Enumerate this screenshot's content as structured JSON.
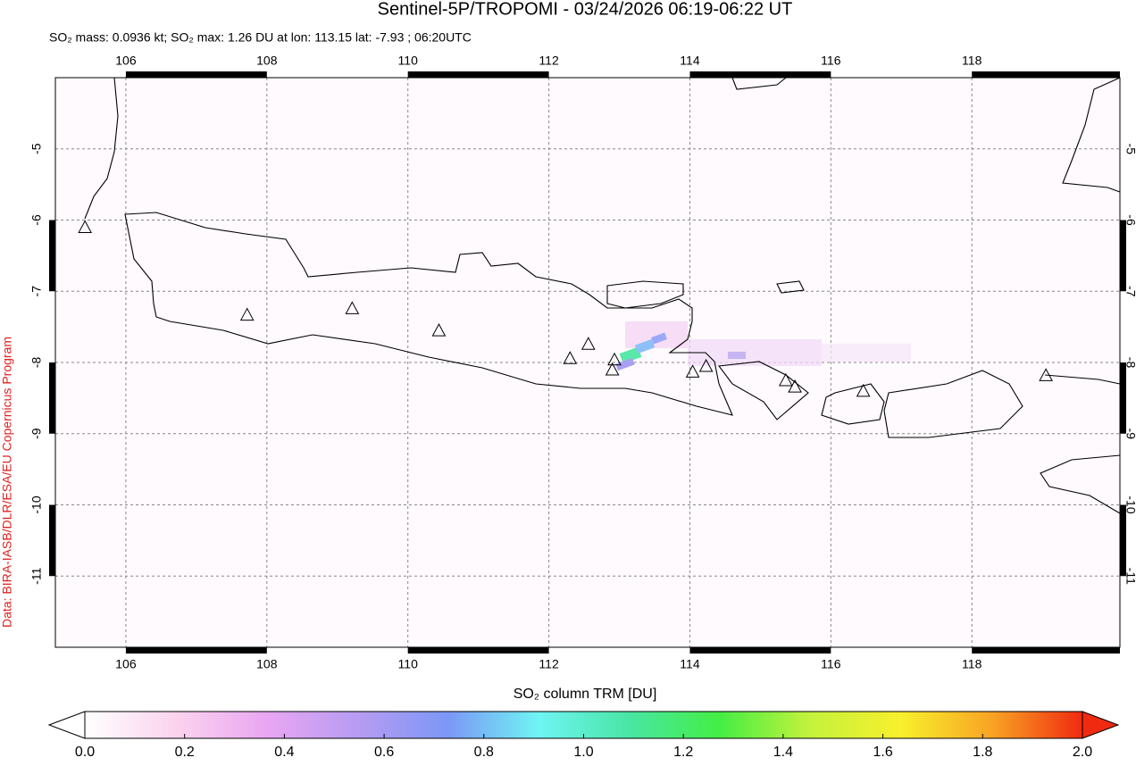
{
  "chart_data": {
    "type": "map",
    "title": "Sentinel-5P/TROPOMI - 03/24/2026 06:19-06:22 UT",
    "subtitle": "SO₂ mass: 0.0936 kt; SO₂ max: 1.26 DU at lon: 113.15 lat: -7.93 ; 06:20UTC",
    "credit": "Data: BIRA-IASB/DLR/ESA/EU Copernicus Program",
    "xlim": [
      105,
      120.1
    ],
    "ylim": [
      -12,
      -4
    ],
    "xticks": [
      106,
      108,
      110,
      112,
      114,
      116,
      118
    ],
    "yticks": [
      -5,
      -6,
      -7,
      -8,
      -9,
      -10,
      -11
    ],
    "grid": true,
    "volcanoes": [
      [
        105.42,
        -6.1
      ],
      [
        107.72,
        -7.33
      ],
      [
        109.21,
        -7.24
      ],
      [
        110.44,
        -7.55
      ],
      [
        112.3,
        -7.94
      ],
      [
        112.56,
        -7.74
      ],
      [
        112.93,
        -7.96
      ],
      [
        112.9,
        -8.1
      ],
      [
        114.04,
        -8.13
      ],
      [
        114.23,
        -8.05
      ],
      [
        115.36,
        -8.25
      ],
      [
        115.49,
        -8.34
      ],
      [
        116.46,
        -8.4
      ],
      [
        119.05,
        -8.18
      ]
    ],
    "colorbar": {
      "label": "SO₂ column TRM [DU]",
      "lim": [
        0,
        2
      ],
      "ticks": [
        {
          "value": 0,
          "label": "0.0"
        },
        0.2,
        0.4,
        0.6,
        0.8,
        {
          "value": 1,
          "label": "1.0"
        },
        1.2,
        1.4,
        1.6,
        1.8,
        {
          "value": 2,
          "label": "2.0"
        }
      ],
      "colors": [
        "#ffffff",
        "#fbd3ee",
        "#e9a6f2",
        "#b79cf2",
        "#7c97f6",
        "#6ff4f4",
        "#48e6a4",
        "#44ee44",
        "#c4f23c",
        "#f8f02c",
        "#f8a424",
        "#f02a10"
      ]
    }
  }
}
